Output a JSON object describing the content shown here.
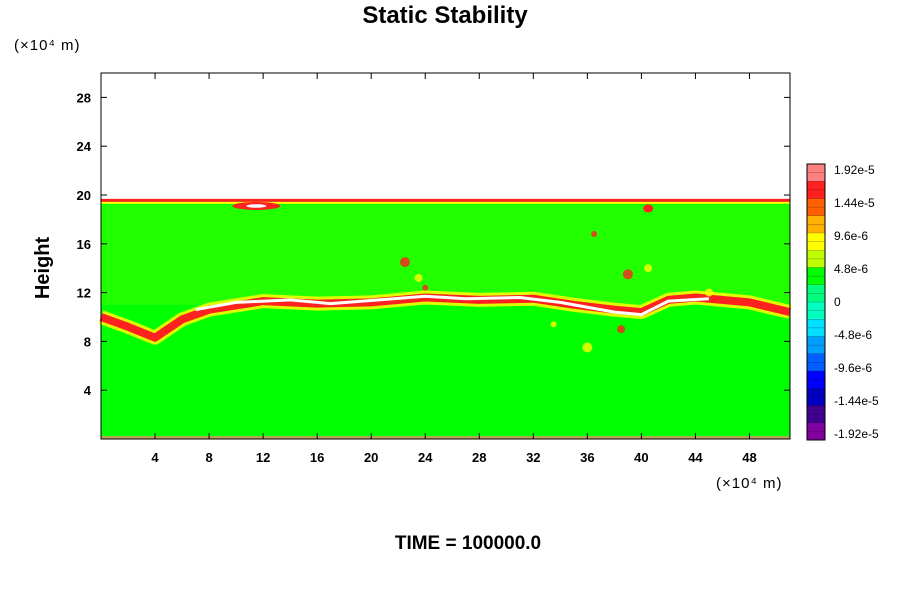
{
  "chart_data": {
    "type": "heatmap",
    "title": "Static Stability",
    "ylabel": "Height",
    "xlabel": "",
    "x_unit": "(×10⁴ m)",
    "y_unit": "(×10⁴ m)",
    "xlim": [
      0,
      51
    ],
    "ylim": [
      0,
      30
    ],
    "x_ticks": [
      "4",
      "8",
      "12",
      "16",
      "20",
      "24",
      "28",
      "32",
      "36",
      "40",
      "44",
      "48"
    ],
    "y_ticks": [
      "4",
      "8",
      "12",
      "16",
      "20",
      "24",
      "28"
    ],
    "x_tick_values": [
      4,
      8,
      12,
      16,
      20,
      24,
      28,
      32,
      36,
      40,
      44,
      48
    ],
    "y_tick_values": [
      4,
      8,
      12,
      16,
      20,
      24,
      28
    ],
    "colorbar": {
      "labels": [
        "1.92e-5",
        "1.44e-5",
        "9.6e-6",
        "4.8e-6",
        "0",
        "-4.8e-6",
        "-9.6e-6",
        "-1.44e-5",
        "-1.92e-5"
      ],
      "values": [
        1.92e-05,
        1.44e-05,
        9.6e-06,
        4.8e-06,
        0,
        -4.8e-06,
        -9.6e-06,
        -1.44e-05,
        -1.92e-05
      ],
      "colors": [
        "#ff8080",
        "#ff2020",
        "#ff6000",
        "#ffb000",
        "#ffff00",
        "#c0ff00",
        "#00ff00",
        "#00ff80",
        "#00ffc0",
        "#00e0ff",
        "#00a0ff",
        "#0060ff",
        "#0000ff",
        "#0000c0",
        "#400090",
        "#8000a0"
      ]
    },
    "field": {
      "background_color": "#00ff00",
      "empty_color": "#ffffff",
      "data_top_height": 19.6,
      "high_stability_color": "#ffffff",
      "strong_color": "#ff2020",
      "moderate_color": "#ffff00"
    },
    "annotation": "TIME = 100000.0"
  }
}
